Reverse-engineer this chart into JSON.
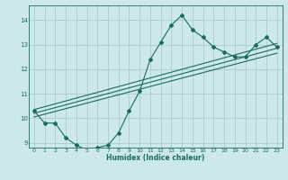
{
  "xlabel": "Humidex (Indice chaleur)",
  "background_color": "#cce8e8",
  "grid_color": "#aacccc",
  "line_color": "#1a6b5e",
  "xlim": [
    -0.5,
    23.5
  ],
  "ylim": [
    8.8,
    14.6
  ],
  "yticks": [
    9,
    10,
    11,
    12,
    13,
    14
  ],
  "xticks": [
    0,
    1,
    2,
    3,
    4,
    5,
    6,
    7,
    8,
    9,
    10,
    11,
    12,
    13,
    14,
    15,
    16,
    17,
    18,
    19,
    20,
    21,
    22,
    23
  ],
  "main_x": [
    0,
    1,
    2,
    3,
    4,
    5,
    6,
    7,
    8,
    9,
    10,
    11,
    12,
    13,
    14,
    15,
    16,
    17,
    18,
    19,
    20,
    21,
    22,
    23
  ],
  "main_y": [
    10.3,
    9.8,
    9.8,
    9.2,
    8.9,
    8.7,
    8.8,
    8.9,
    9.4,
    10.3,
    11.1,
    12.4,
    13.1,
    13.8,
    14.2,
    13.6,
    13.3,
    12.9,
    12.7,
    12.5,
    12.5,
    13.0,
    13.3,
    12.9
  ],
  "line1_x": [
    0,
    23
  ],
  "line1_y": [
    10.05,
    12.65
  ],
  "line2_x": [
    0,
    23
  ],
  "line2_y": [
    10.2,
    12.85
  ],
  "line3_x": [
    0,
    23
  ],
  "line3_y": [
    10.35,
    13.05
  ]
}
